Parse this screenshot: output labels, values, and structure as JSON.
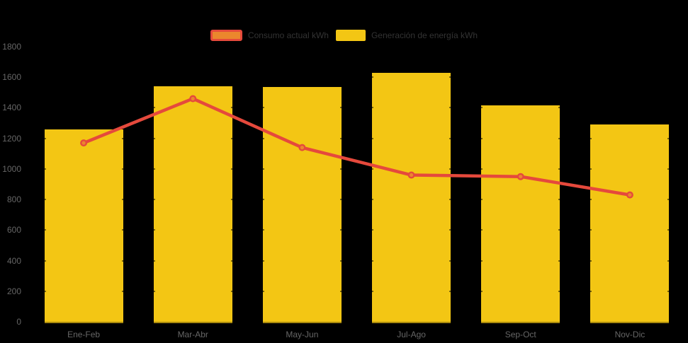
{
  "chart_data": {
    "type": "combo",
    "categories": [
      "Ene-Feb",
      "Mar-Abr",
      "May-Jun",
      "Jul-Ago",
      "Sep-Oct",
      "Nov-Dic"
    ],
    "series": [
      {
        "name": "Consumo actual kWh",
        "type": "line",
        "values": [
          1170,
          1460,
          1140,
          960,
          950,
          830
        ]
      },
      {
        "name": "Generación de energía kWh",
        "type": "bar",
        "values": [
          1260,
          1540,
          1535,
          1630,
          1415,
          1290
        ]
      }
    ],
    "ylim": [
      0,
      1800
    ],
    "yticks": [
      0,
      200,
      400,
      600,
      800,
      1000,
      1200,
      1400,
      1600,
      1800
    ],
    "xlabel": "",
    "ylabel": "",
    "legend_position": "top",
    "grid": false
  },
  "colors": {
    "background": "#000000",
    "bar": "#f3c614",
    "line": "#e5493c",
    "marker_fill": "#eb872d",
    "axis_text": "#666666",
    "legend_text": "#333333"
  }
}
